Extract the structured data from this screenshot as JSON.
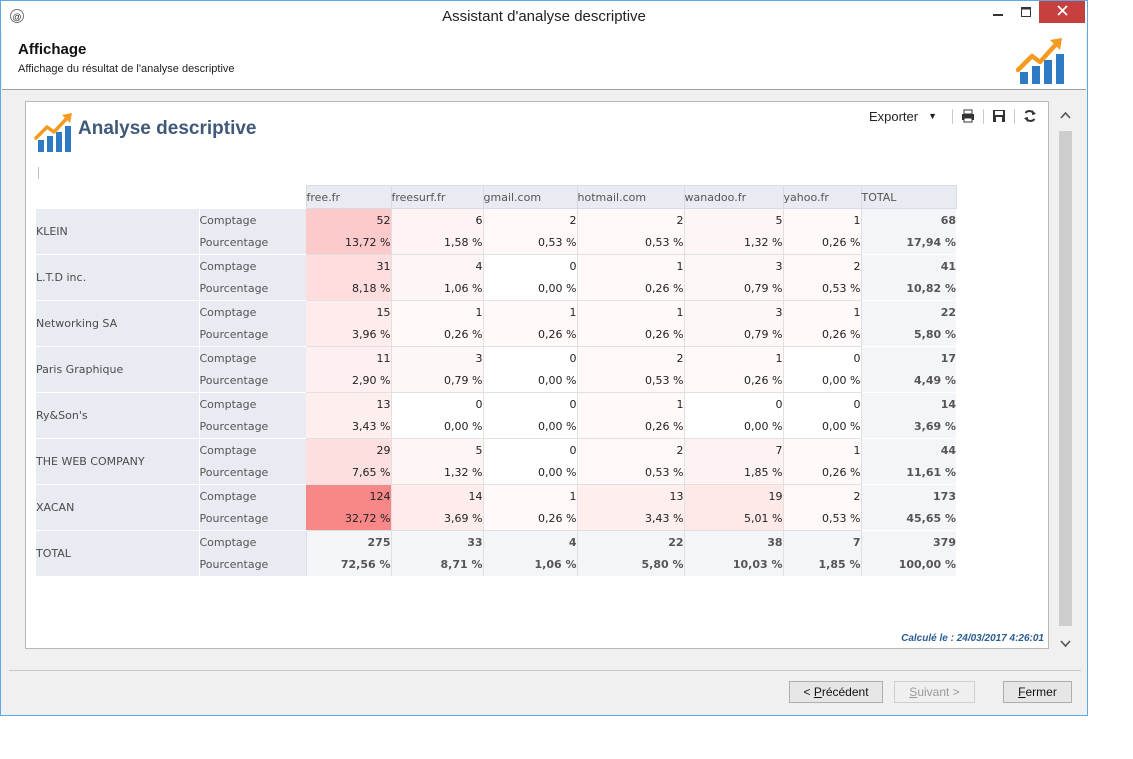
{
  "window": {
    "title": "Assistant d'analyse descriptive",
    "app_icon": "@"
  },
  "header": {
    "title": "Affichage",
    "subtitle": "Affichage du résultat de l'analyse descriptive"
  },
  "toolbar": {
    "export_label": "Exporter",
    "icons": [
      "print-icon",
      "save-icon",
      "refresh-icon"
    ]
  },
  "report": {
    "title": "Analyse descriptive",
    "computed": "Calculé le : 24/03/2017 4:26:01"
  },
  "table": {
    "columns": [
      "free.fr",
      "freesurf.fr",
      "gmail.com",
      "hotmail.com",
      "wanadoo.fr",
      "yahoo.fr",
      "TOTAL"
    ],
    "measures": {
      "count": "Comptage",
      "pct": "Pourcentage"
    },
    "rows": [
      {
        "label": "KLEIN",
        "counts": [
          "52",
          "6",
          "2",
          "2",
          "5",
          "1",
          "68"
        ],
        "pcts": [
          "13,72 %",
          "1,58 %",
          "0,53 %",
          "0,53 %",
          "1,32 %",
          "0,26 %",
          "17,94 %"
        ]
      },
      {
        "label": "L.T.D inc.",
        "counts": [
          "31",
          "4",
          "0",
          "1",
          "3",
          "2",
          "41"
        ],
        "pcts": [
          "8,18 %",
          "1,06 %",
          "0,00 %",
          "0,26 %",
          "0,79 %",
          "0,53 %",
          "10,82 %"
        ]
      },
      {
        "label": "Networking SA",
        "counts": [
          "15",
          "1",
          "1",
          "1",
          "3",
          "1",
          "22"
        ],
        "pcts": [
          "3,96 %",
          "0,26 %",
          "0,26 %",
          "0,26 %",
          "0,79 %",
          "0,26 %",
          "5,80 %"
        ]
      },
      {
        "label": "Paris Graphique",
        "counts": [
          "11",
          "3",
          "0",
          "2",
          "1",
          "0",
          "17"
        ],
        "pcts": [
          "2,90 %",
          "0,79 %",
          "0,00 %",
          "0,53 %",
          "0,26 %",
          "0,00 %",
          "4,49 %"
        ]
      },
      {
        "label": "Ry&Son's",
        "counts": [
          "13",
          "0",
          "0",
          "1",
          "0",
          "0",
          "14"
        ],
        "pcts": [
          "3,43 %",
          "0,00 %",
          "0,00 %",
          "0,26 %",
          "0,00 %",
          "0,00 %",
          "3,69 %"
        ]
      },
      {
        "label": "THE WEB COMPANY",
        "counts": [
          "29",
          "5",
          "0",
          "2",
          "7",
          "1",
          "44"
        ],
        "pcts": [
          "7,65 %",
          "1,32 %",
          "0,00 %",
          "0,53 %",
          "1,85 %",
          "0,26 %",
          "11,61 %"
        ]
      },
      {
        "label": "XACAN",
        "counts": [
          "124",
          "14",
          "1",
          "13",
          "19",
          "2",
          "173"
        ],
        "pcts": [
          "32,72 %",
          "3,69 %",
          "0,26 %",
          "3,43 %",
          "5,01 %",
          "0,53 %",
          "45,65 %"
        ]
      }
    ],
    "total": {
      "label": "TOTAL",
      "counts": [
        "275",
        "33",
        "4",
        "22",
        "38",
        "7",
        "379"
      ],
      "pcts": [
        "72,56 %",
        "8,71 %",
        "1,06 %",
        "5,80 %",
        "10,03 %",
        "1,85 %",
        "100,00 %"
      ]
    },
    "heat_color": "#f7a4a4"
  },
  "buttons": {
    "prev": {
      "pre": "< ",
      "mnemonic": "P",
      "rest": "récédent"
    },
    "next": {
      "mnemonic": "S",
      "rest": "uivant >"
    },
    "close": {
      "mnemonic": "F",
      "rest": "ermer"
    }
  },
  "colors": {
    "accent": "#5fa8e4",
    "close": "#c74040",
    "title_blue": "#415978",
    "computed_blue": "#2b5c93"
  }
}
